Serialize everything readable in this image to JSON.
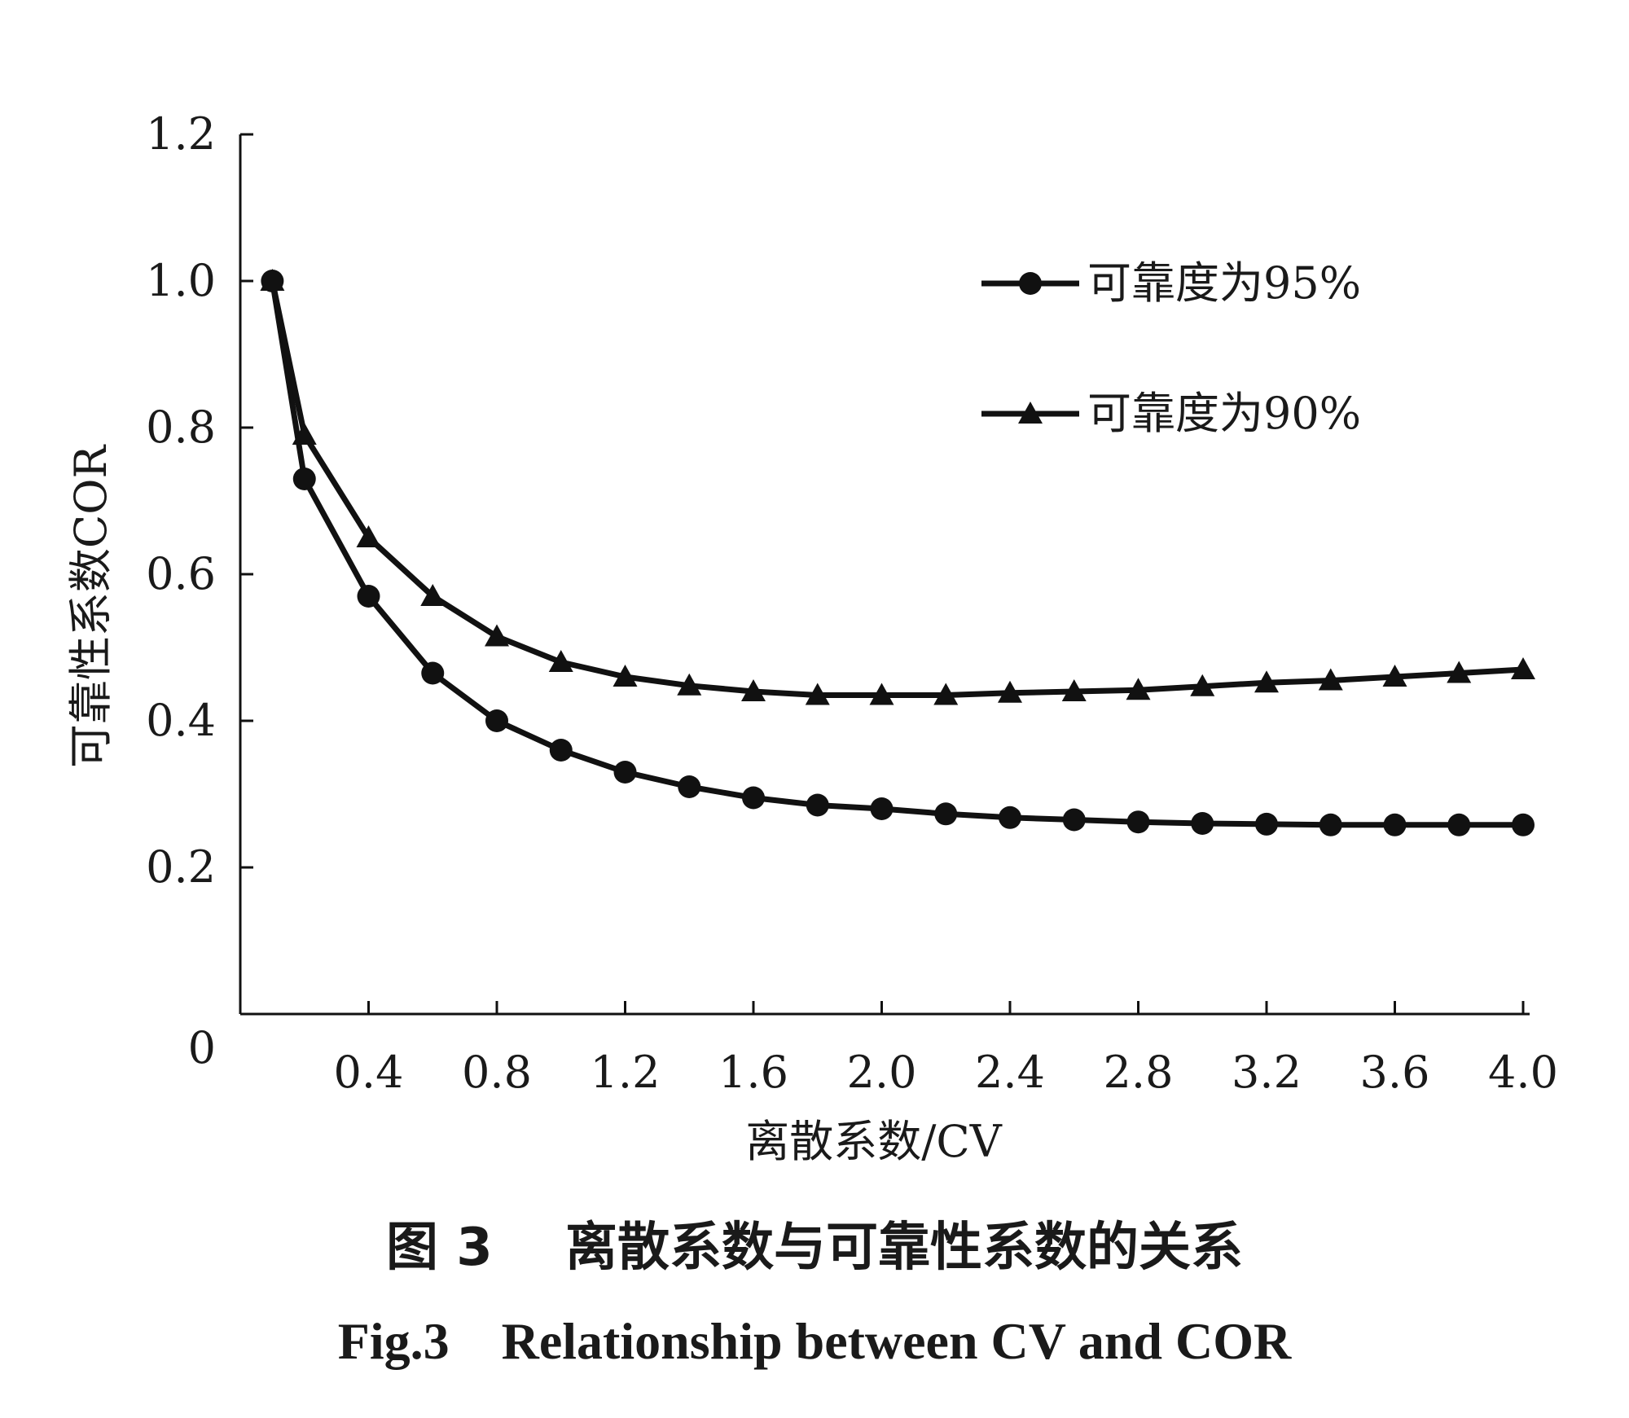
{
  "chart_data": {
    "type": "line",
    "title": "",
    "xlabel": "离散系数/CV",
    "ylabel": "可靠性系数COR",
    "xlim": [
      0,
      4.0
    ],
    "ylim": [
      0,
      1.2
    ],
    "x_origin_label": "0",
    "x_ticks": [
      "0.4",
      "0.8",
      "1.2",
      "1.6",
      "2.0",
      "2.4",
      "2.8",
      "3.2",
      "3.6",
      "4.0"
    ],
    "y_ticks": [
      "0.2",
      "0.4",
      "0.6",
      "0.8",
      "1.0",
      "1.2"
    ],
    "x": [
      0.1,
      0.2,
      0.4,
      0.6,
      0.8,
      1.0,
      1.2,
      1.4,
      1.6,
      1.8,
      2.0,
      2.2,
      2.4,
      2.6,
      2.8,
      3.0,
      3.2,
      3.4,
      3.6,
      3.8,
      4.0
    ],
    "series": [
      {
        "name": "可靠度为95%",
        "marker": "circle",
        "values": [
          1.0,
          0.73,
          0.57,
          0.465,
          0.4,
          0.36,
          0.33,
          0.31,
          0.295,
          0.285,
          0.28,
          0.273,
          0.268,
          0.265,
          0.262,
          0.26,
          0.259,
          0.258,
          0.258,
          0.258,
          0.258
        ]
      },
      {
        "name": "可靠度为90%",
        "marker": "triangle",
        "values": [
          1.0,
          0.79,
          0.65,
          0.57,
          0.515,
          0.48,
          0.46,
          0.448,
          0.44,
          0.435,
          0.435,
          0.435,
          0.438,
          0.44,
          0.442,
          0.447,
          0.452,
          0.455,
          0.46,
          0.465,
          0.47
        ]
      }
    ],
    "legend_position": "top-right",
    "grid": false
  },
  "caption": {
    "cn": "图 3    离散系数与可靠性系数的关系",
    "en": "Fig.3    Relationship between CV and COR"
  }
}
